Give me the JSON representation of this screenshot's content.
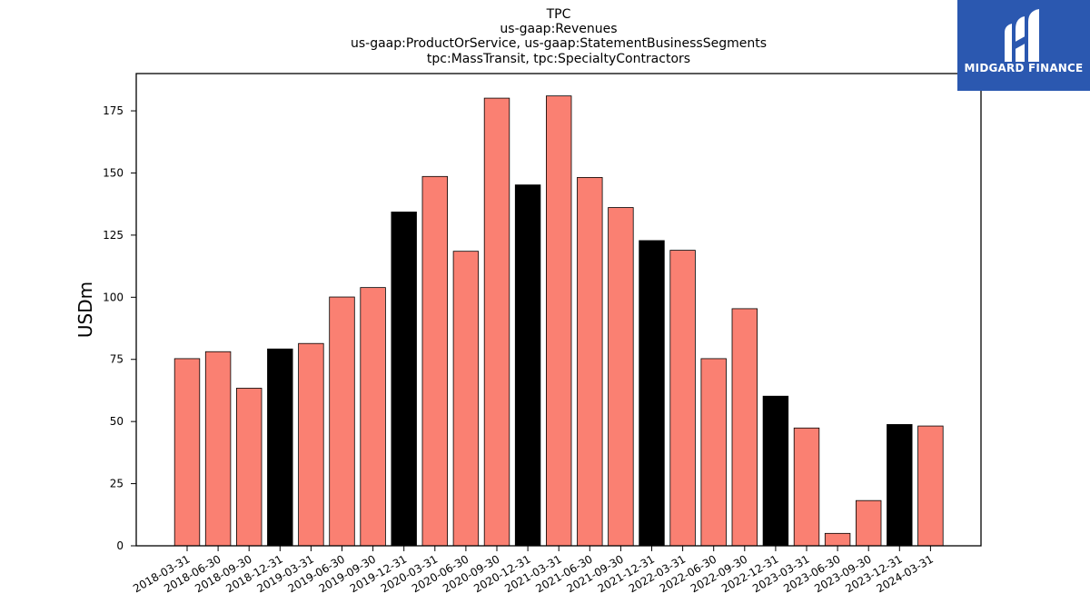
{
  "chart_data": {
    "type": "bar",
    "title": [
      "TPC",
      "us-gaap:Revenues",
      "us-gaap:ProductOrService, us-gaap:StatementBusinessSegments",
      "tpc:MassTransit, tpc:SpecialtyContractors"
    ],
    "ylabel": "USDm",
    "xlabel": "",
    "ylim": [
      0,
      190
    ],
    "yticks": [
      0,
      25,
      50,
      75,
      100,
      125,
      150,
      175
    ],
    "grid": false,
    "categories": [
      "2018-03-31",
      "2018-06-30",
      "2018-09-30",
      "2018-12-31",
      "2019-03-31",
      "2019-06-30",
      "2019-09-30",
      "2019-12-31",
      "2020-03-31",
      "2020-06-30",
      "2020-09-30",
      "2020-12-31",
      "2021-03-31",
      "2021-06-30",
      "2021-09-30",
      "2021-12-31",
      "2022-03-31",
      "2022-06-30",
      "2022-09-30",
      "2022-12-31",
      "2023-03-31",
      "2023-06-30",
      "2023-09-30",
      "2023-12-31",
      "2024-03-31"
    ],
    "values": [
      75.3,
      78.1,
      63.4,
      79.2,
      81.4,
      100.1,
      103.9,
      134.3,
      148.6,
      118.5,
      180.1,
      145.2,
      181.0,
      148.2,
      136.1,
      122.8,
      118.9,
      75.3,
      95.4,
      60.2,
      47.4,
      5.0,
      18.2,
      48.8,
      48.2
    ],
    "colors": {
      "quarter": "#fa8072",
      "year_end": "#000000",
      "edge": "#000000"
    },
    "year_end_categories": [
      "2018-12-31",
      "2019-12-31",
      "2020-12-31",
      "2021-12-31",
      "2022-12-31",
      "2023-12-31"
    ]
  },
  "logo": {
    "text": "MIDGARD FINANCE",
    "icon": "midgard-logo-icon",
    "background": "#2b58b0"
  }
}
